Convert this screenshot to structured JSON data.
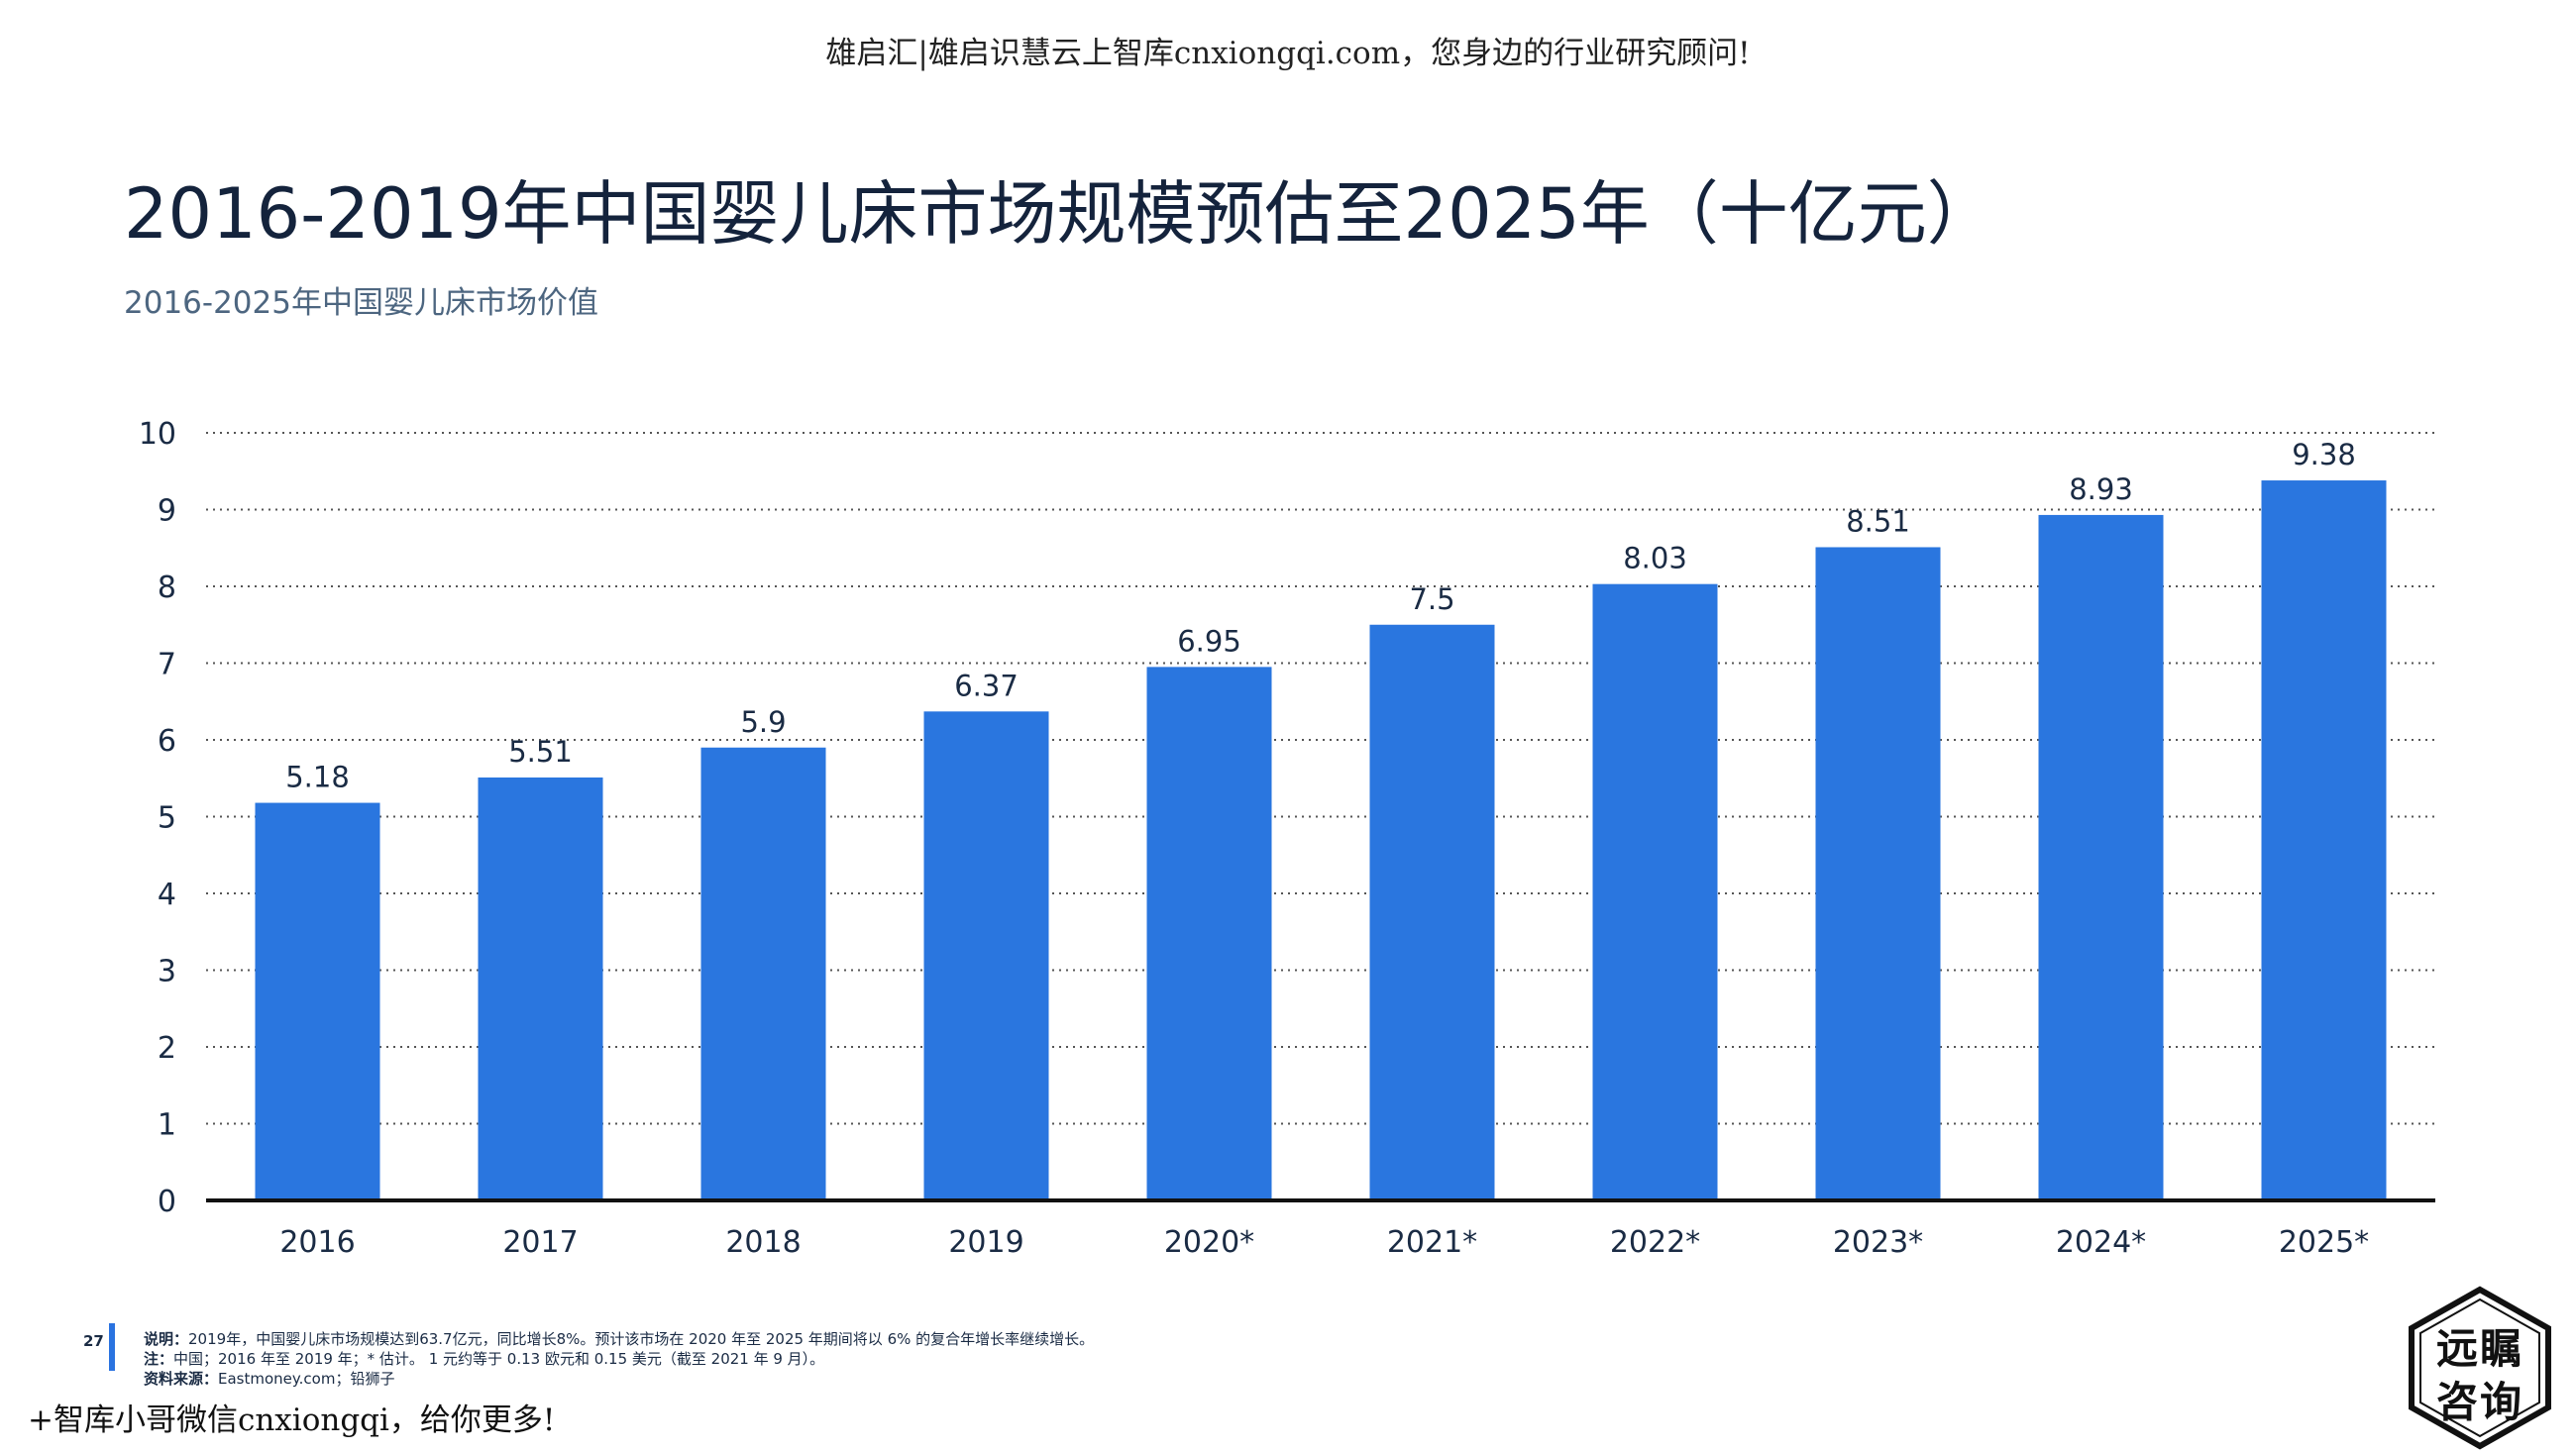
{
  "header": {
    "banner": "雄启汇|雄启识慧云上智库cnxiongqi.com，您身边的行业研究顾问!",
    "title": "2016-2019年中国婴儿床市场规模预估至2025年（十亿元）",
    "subtitle": "2016-2025年中国婴儿床市场价值"
  },
  "chart_data": {
    "type": "bar",
    "categories": [
      "2016",
      "2017",
      "2018",
      "2019",
      "2020*",
      "2021*",
      "2022*",
      "2023*",
      "2024*",
      "2025*"
    ],
    "values": [
      5.18,
      5.51,
      5.9,
      6.37,
      6.95,
      7.5,
      8.03,
      8.51,
      8.93,
      9.38
    ],
    "value_labels": [
      "5.18",
      "5.51",
      "5.9",
      "6.37",
      "6.95",
      "7.5",
      "8.03",
      "8.51",
      "8.93",
      "9.38"
    ],
    "ylim": [
      0,
      10
    ],
    "yticks": [
      "0",
      "1",
      "2",
      "3",
      "4",
      "5",
      "6",
      "7",
      "8",
      "9",
      "10"
    ],
    "grid": true,
    "bar_color": "#2a76df",
    "title": "",
    "xlabel": "",
    "ylabel": ""
  },
  "footer": {
    "page_number": "27",
    "note_label": "说明：",
    "note_text": "2019年，中国婴儿床市场规模达到63.7亿元，同比增长8%。预计该市场在 2020 年至 2025 年期间将以 6% 的复合年增长率继续增长。",
    "footnote_label": "注：",
    "footnote_text": "中国；2016 年至 2019 年；* 估计。 1 元约等于 0.13 欧元和 0.15 美元（截至 2021 年 9 月）。",
    "source_label": "资料来源：",
    "source_text": "Eastmoney.com；铅狮子",
    "promo": "+智库小哥微信cnxiongqi，给你更多!",
    "logo_line1": "远瞩",
    "logo_line2": "咨询"
  },
  "accent_color": "#2a73e0"
}
